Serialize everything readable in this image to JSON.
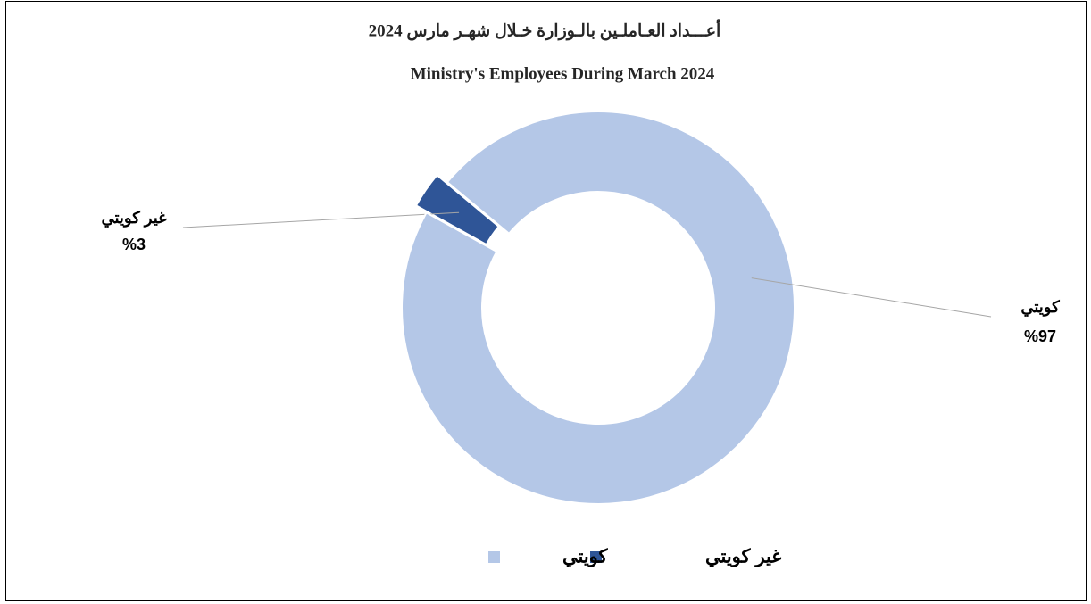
{
  "chart_data": {
    "type": "donut",
    "title": "أعـــداد العـاملـين بالـوزارة خـلال شهـر مارس 2024",
    "subtitle": "Ministry's Employees During March 2024",
    "categories": [
      "غير كويتي",
      "كويتي"
    ],
    "values": [
      3,
      97
    ],
    "value_labels": [
      "%3",
      "%97"
    ],
    "colors": [
      "#2f5597",
      "#b4c7e7"
    ],
    "legend": "bottom"
  }
}
